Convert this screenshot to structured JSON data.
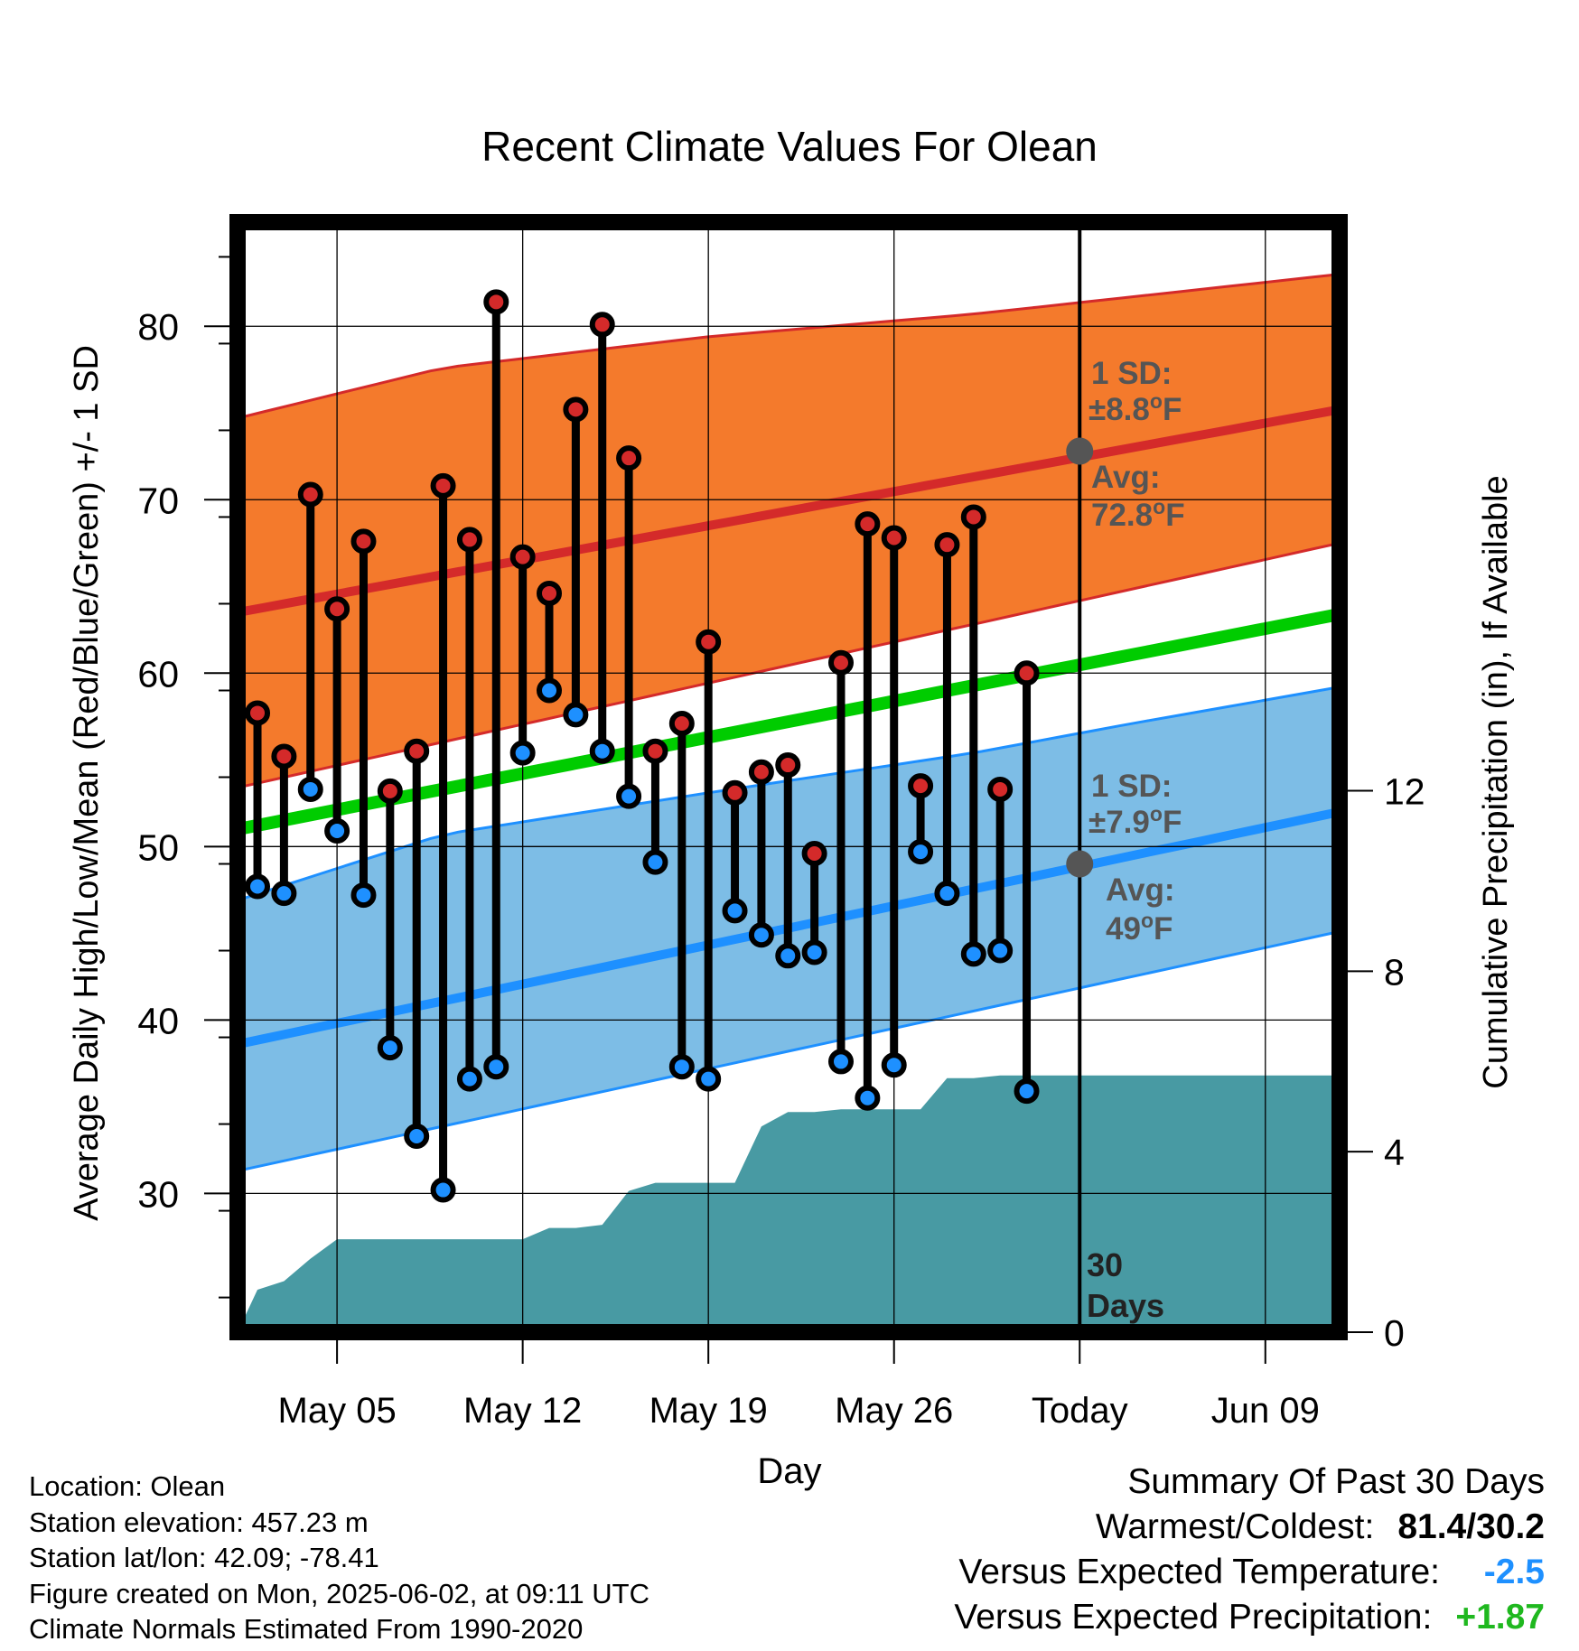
{
  "chart_data": {
    "type": "line",
    "title": "Recent Climate Values For Olean",
    "xlabel": "Day",
    "ylabel": "Average Daily High/Low/Mean (Red/Blue/Green) +/- 1 SD",
    "y2label": "Cumulative Precipitation (in), If Available",
    "ylim": [
      22,
      86
    ],
    "y2lim": [
      0,
      24.6
    ],
    "xlim": [
      -0.75,
      40.8
    ],
    "x_ticks": [
      {
        "x": 3,
        "label": "May 05"
      },
      {
        "x": 10,
        "label": "May 12"
      },
      {
        "x": 17,
        "label": "May 19"
      },
      {
        "x": 24,
        "label": "May 26"
      },
      {
        "x": 31,
        "label": "Today"
      },
      {
        "x": 38,
        "label": "Jun 09"
      }
    ],
    "y_ticks": [
      30,
      40,
      50,
      60,
      70,
      80
    ],
    "y2_ticks": [
      0,
      4,
      8,
      12
    ],
    "grid": true,
    "x_day_note": "x = days after May 02",
    "highs": [
      57.7,
      55.2,
      70.3,
      63.7,
      67.6,
      53.2,
      55.5,
      70.8,
      67.7,
      81.4,
      66.7,
      64.6,
      75.2,
      80.1,
      72.4,
      55.5,
      57.1,
      61.8,
      53.1,
      54.3,
      54.7,
      49.6,
      60.6,
      68.6,
      67.8,
      53.5,
      67.4,
      69.0,
      53.3,
      60.0
    ],
    "lows": [
      47.7,
      47.3,
      53.3,
      50.9,
      47.2,
      38.4,
      33.3,
      30.2,
      36.6,
      37.3,
      55.4,
      59.0,
      57.6,
      55.5,
      52.9,
      49.1,
      37.3,
      36.6,
      46.3,
      44.9,
      43.7,
      43.9,
      37.6,
      35.5,
      37.4,
      49.7,
      47.3,
      43.8,
      44.0,
      35.9
    ],
    "normals": {
      "high_mean": {
        "x": [
          -0.75,
          40.8
        ],
        "values": [
          63.5,
          75.2
        ]
      },
      "high_upper": {
        "x": [
          -0.75,
          7,
          17,
          27,
          33,
          40.8
        ],
        "values": [
          74.7,
          77.6,
          79.4,
          80.7,
          81.7,
          83.0
        ]
      },
      "high_lower": {
        "x": [
          -0.75,
          40.8
        ],
        "values": [
          53.4,
          67.5
        ]
      },
      "mean": {
        "x": [
          -0.75,
          40.8
        ],
        "values": [
          51.0,
          63.4
        ]
      },
      "low_mean": {
        "x": [
          -0.75,
          40.8
        ],
        "values": [
          38.6,
          52.0
        ]
      },
      "low_upper": {
        "x": [
          -0.75,
          7,
          17,
          27,
          33,
          40.8
        ],
        "values": [
          46.9,
          50.7,
          53.1,
          55.4,
          57.1,
          59.2
        ]
      },
      "low_lower": {
        "x": [
          -0.75,
          40.8
        ],
        "values": [
          31.3,
          45.1
        ]
      }
    },
    "precip_cumulative": {
      "x": [
        -0.75,
        0,
        1,
        2,
        3,
        4,
        5,
        6,
        7,
        8,
        9,
        10,
        11,
        12,
        13,
        14,
        15,
        16,
        17,
        18,
        19,
        20,
        21,
        22,
        23,
        24,
        25,
        26,
        27,
        28,
        29,
        30,
        31,
        40.8
      ],
      "values": [
        0,
        0.94,
        1.13,
        1.63,
        2.06,
        2.06,
        2.06,
        2.06,
        2.06,
        2.06,
        2.06,
        2.06,
        2.31,
        2.31,
        2.38,
        3.13,
        3.31,
        3.31,
        3.31,
        3.31,
        4.56,
        4.88,
        4.88,
        4.94,
        4.94,
        4.94,
        4.94,
        5.63,
        5.63,
        5.69,
        5.69,
        5.69,
        5.69,
        5.69
      ]
    },
    "today_x": 31,
    "annotations": {
      "high_sd": {
        "line1": "1 SD:",
        "line2": "±8.8",
        "deg": "o",
        "unit": "F"
      },
      "high_avg": {
        "line1": "Avg:",
        "line2": "72.8",
        "deg": "o",
        "unit": "F",
        "value": 72.8
      },
      "low_sd": {
        "line1": "1 SD:",
        "line2": "±7.9",
        "deg": "o",
        "unit": "F"
      },
      "low_avg": {
        "line1": "Avg:",
        "line2": "49",
        "deg": "o",
        "unit": "F",
        "value": 49
      },
      "window": {
        "line1": "30",
        "line2": "Days"
      }
    },
    "colors": {
      "high_band": "#f47a2c",
      "high_line": "#d42a2a",
      "low_band": "#7dbde6",
      "low_line": "#1e90ff",
      "mean_line": "#00cc00",
      "precip": "#489aa3",
      "high_marker": "#d42a2a",
      "low_marker": "#1e90ff",
      "annotation": "#555555"
    }
  },
  "info": {
    "location": "Location: Olean",
    "elevation": "Station elevation: 457.23 m",
    "latlon": "Station lat/lon: 42.09; -78.41",
    "created": "Figure created on Mon, 2025-06-02, at 09:11 UTC",
    "normals": "Climate Normals Estimated From 1990-2020"
  },
  "summary": {
    "title": "Summary Of Past 30 Days",
    "warm_label": "Warmest/Coldest:",
    "warm_value": "81.4/30.2",
    "temp_label": "Versus Expected Temperature:",
    "temp_value": "-2.5",
    "precip_label": "Versus Expected Precipitation:",
    "precip_value": "+1.87"
  }
}
